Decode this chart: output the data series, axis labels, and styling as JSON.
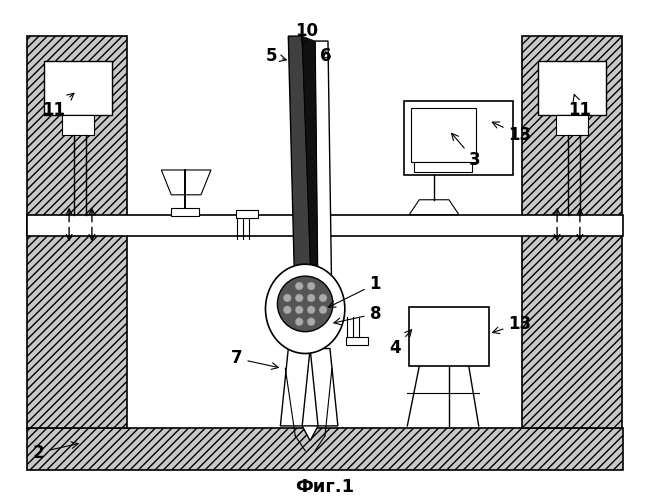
{
  "title": "Фиг.1",
  "background": "#ffffff",
  "line_color": "#000000",
  "figsize": [
    6.49,
    5.0
  ],
  "dpi": 100
}
